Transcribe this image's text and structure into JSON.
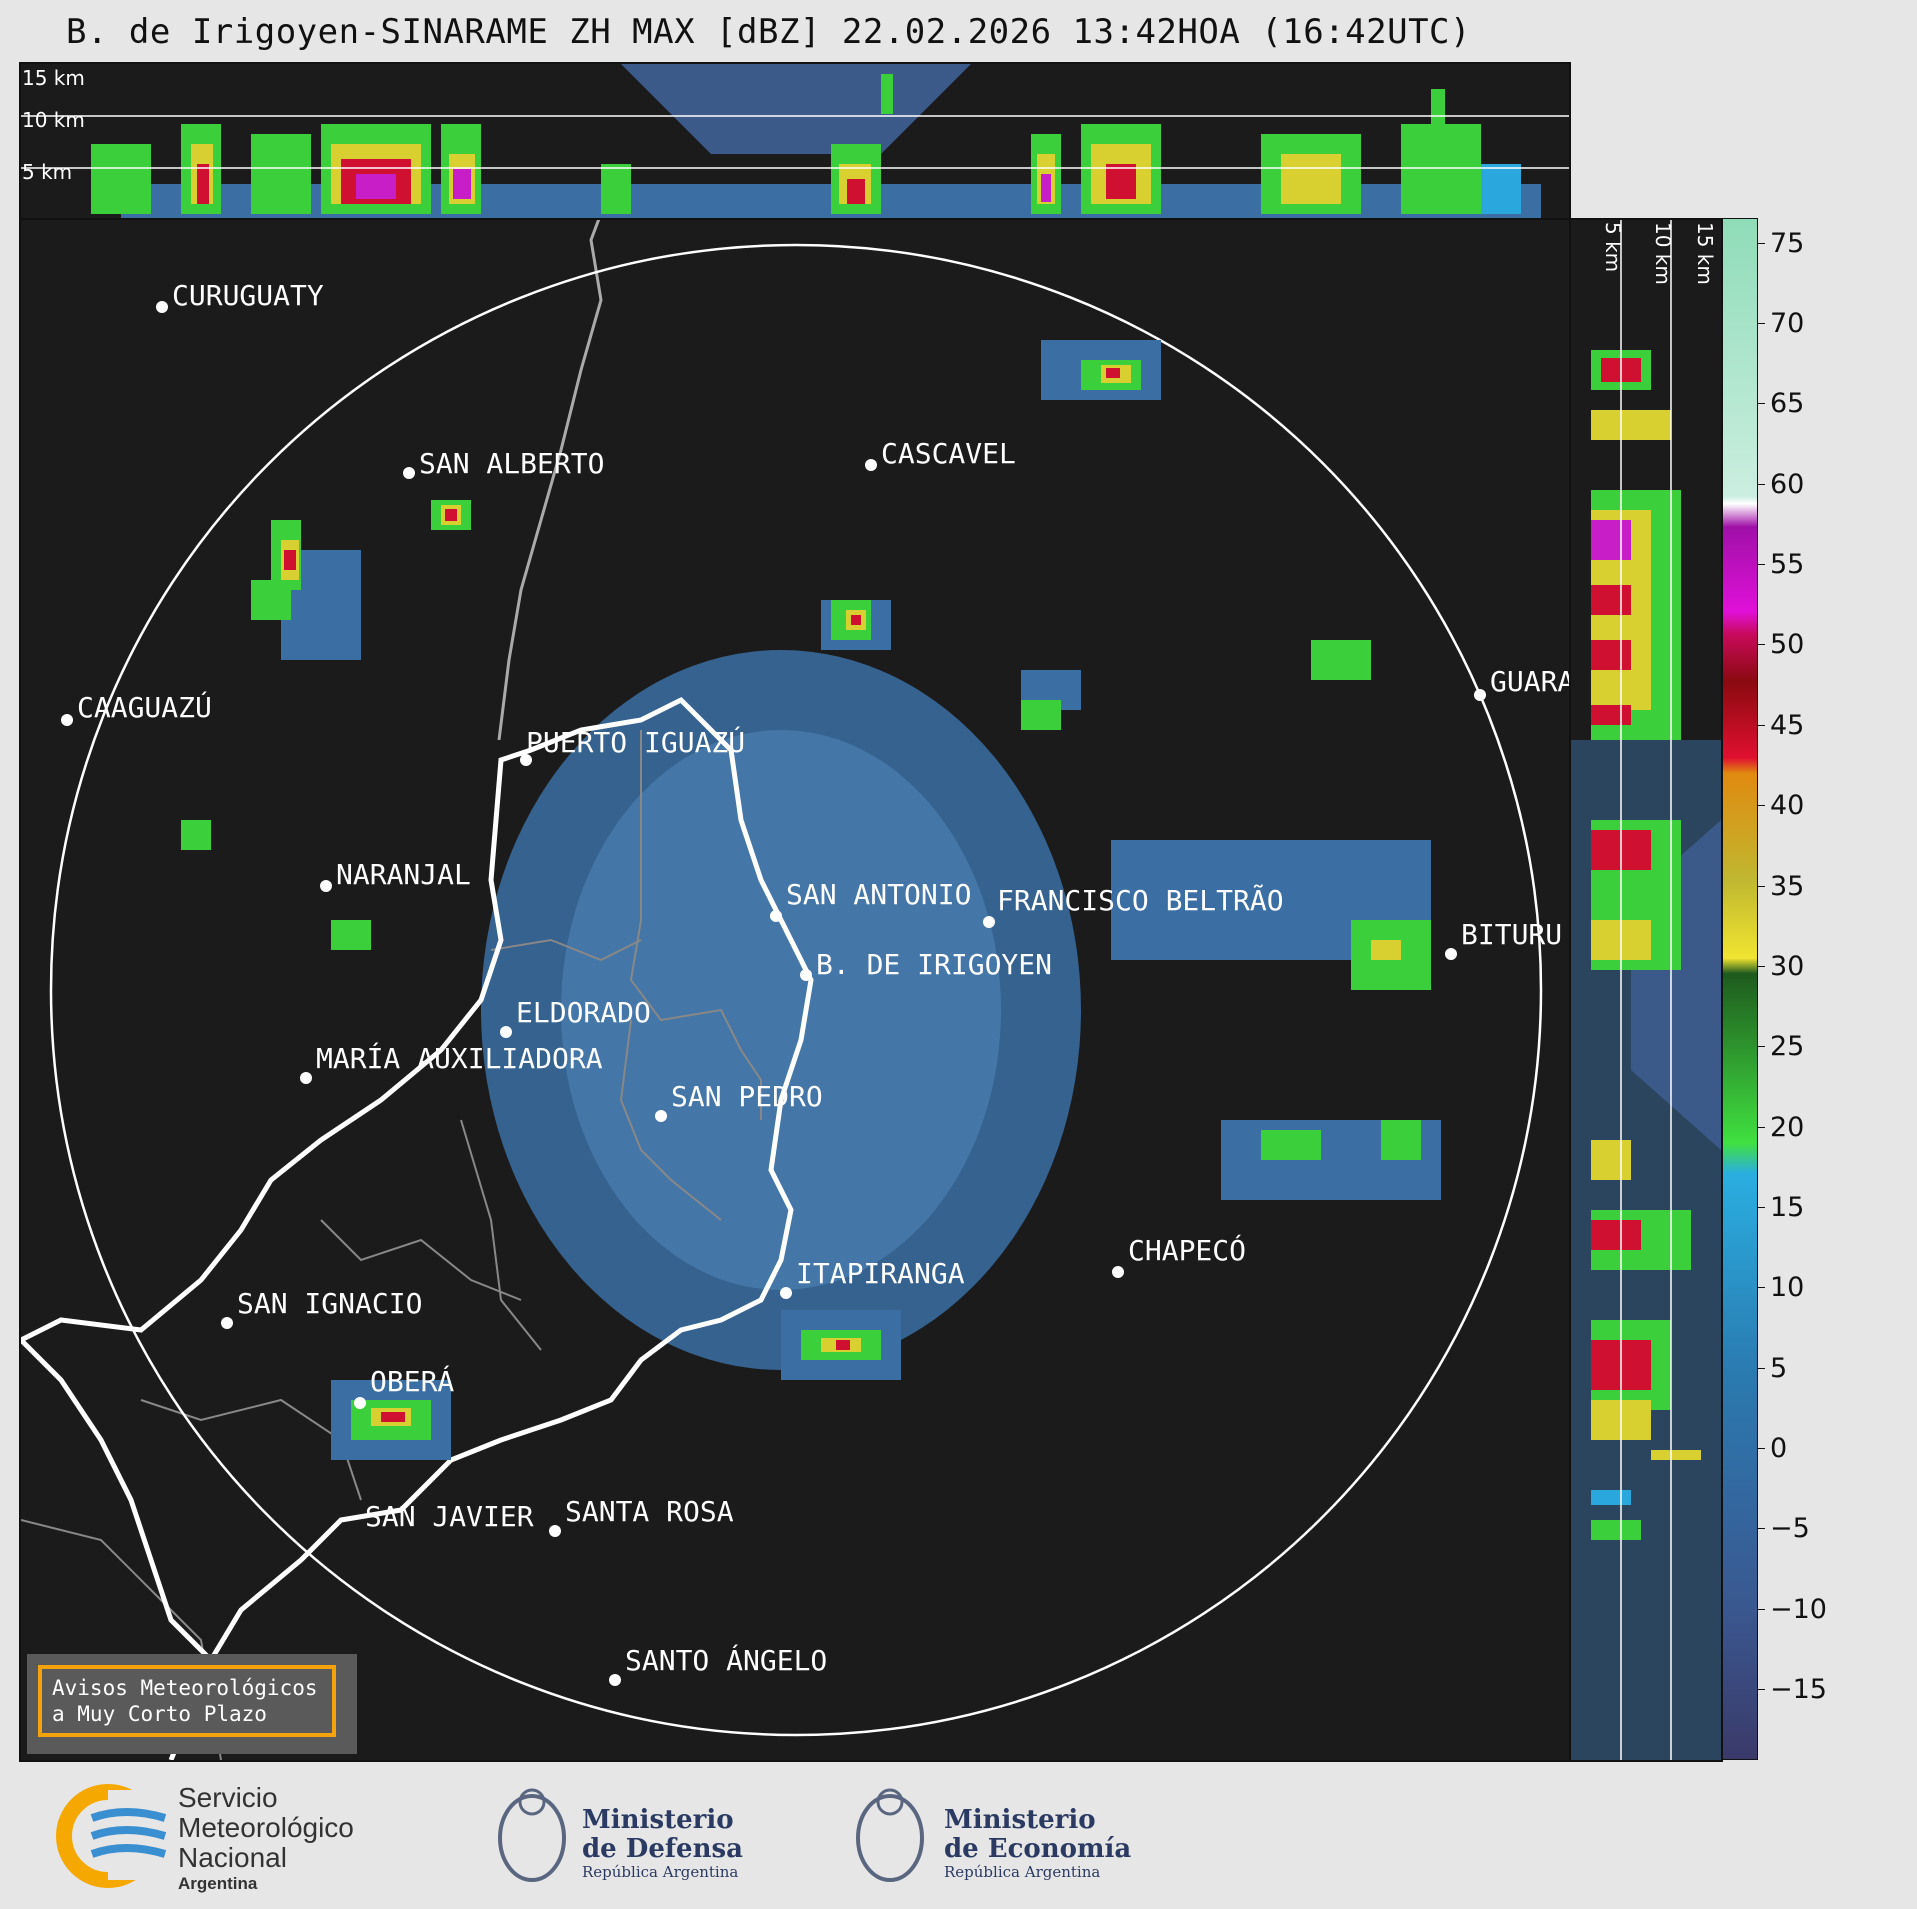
{
  "title": "B. de Irigoyen-SINARAME ZH MAX [dBZ] 22.02.2026 13:42HOA (16:42UTC)",
  "top_panel": {
    "altitude_labels": [
      "15 km",
      "10 km",
      "5 km"
    ]
  },
  "side_panel": {
    "altitude_labels": [
      "5 km",
      "10 km",
      "15 km"
    ]
  },
  "colorbar": {
    "ticks": [
      "75",
      "70",
      "65",
      "60",
      "55",
      "50",
      "45",
      "40",
      "35",
      "30",
      "25",
      "20",
      "15",
      "10",
      "5",
      "0",
      "−5",
      "−10",
      "−15"
    ],
    "colors": {
      "range_-15_-5": "#3b3f6e",
      "range_-5_15": "#3b6fa3",
      "range_15_20": "#2aa7dc",
      "range_20_30": "#3ccf3c",
      "range_30_42": "#d8d030",
      "range_42_50": "#d01030",
      "range_50_58": "#c81ec8",
      "range_58_60": "#ffffff",
      "range_60_77": "#8fdcb8"
    }
  },
  "cities": [
    "CURUGUATY",
    "SAN ALBERTO",
    "CASCAVEL",
    "CAAGUAZÚ",
    "GUARA",
    "PUERTO IGUAZÚ",
    "NARANJAL",
    "SAN ANTONIO",
    "FRANCISCO BELTRÃO",
    "BITURU",
    "B. DE IRIGOYEN",
    "ELDORADO",
    "MARÍA AUXILIADORA",
    "SAN PEDRO",
    "CHAPECÓ",
    "ITAPIRANGA",
    "SAN IGNACIO",
    "OBERÁ",
    "SAN JAVIER",
    "SANTA ROSA",
    "SANTO ÁNGELO"
  ],
  "warning_box": {
    "line1": "Avisos Meteorológicos",
    "line2": "a Muy Corto Plazo"
  },
  "logos": {
    "smn": {
      "line1": "Servicio",
      "line2": "Meteorológico",
      "line3": "Nacional",
      "line4": "Argentina"
    },
    "defensa": {
      "line1": "Ministerio",
      "line2": "de Defensa",
      "line3": "República Argentina"
    },
    "economia": {
      "line1": "Ministerio",
      "line2": "de Economía",
      "line3": "República Argentina"
    }
  }
}
